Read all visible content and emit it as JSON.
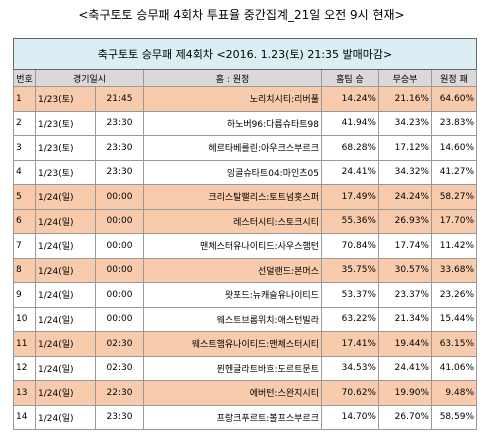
{
  "header": {
    "title": "<축구토토 승무패 4회차 투표율 중간집계_21일 오전 9시 현재>"
  },
  "table": {
    "title": "축구토토 승무패 제4회차 <2016. 1.23(토) 21:35 발매마감>",
    "columns": [
      "번호",
      "경기일시",
      "홈 : 원정",
      "홈팀 승",
      "무승부",
      "원정 패"
    ],
    "rows": [
      {
        "cells": [
          "1",
          "1/23(토)",
          "21:45",
          "노리치시티:리버풀",
          "14.24%",
          "21.16%",
          "64.60%"
        ],
        "highlight": true
      },
      {
        "cells": [
          "2",
          "1/23(토)",
          "23:30",
          "하노버96:다름슈타트98",
          "41.94%",
          "34.23%",
          "23.83%"
        ],
        "highlight": false
      },
      {
        "cells": [
          "3",
          "1/23(토)",
          "23:30",
          "헤르타베를린:아우크스부르크",
          "68.28%",
          "17.12%",
          "14.60%"
        ],
        "highlight": false
      },
      {
        "cells": [
          "4",
          "1/23(토)",
          "23:30",
          "잉골슈타트04:마인츠05",
          "24.41%",
          "34.32%",
          "41.27%"
        ],
        "highlight": false
      },
      {
        "cells": [
          "5",
          "1/24(일)",
          "00:00",
          "크리스탈팰리스:토트넘홋스퍼",
          "17.49%",
          "24.24%",
          "58.27%"
        ],
        "highlight": true
      },
      {
        "cells": [
          "6",
          "1/24(일)",
          "00:00",
          "레스터시티:스토크시티",
          "55.36%",
          "26.93%",
          "17.70%"
        ],
        "highlight": true
      },
      {
        "cells": [
          "7",
          "1/24(일)",
          "00:00",
          "맨체스터유나이티드:사우스햄턴",
          "70.84%",
          "17.74%",
          "11.42%"
        ],
        "highlight": false
      },
      {
        "cells": [
          "8",
          "1/24(일)",
          "00:00",
          "선덜랜드:본머스",
          "35.75%",
          "30.57%",
          "33.68%"
        ],
        "highlight": true
      },
      {
        "cells": [
          "9",
          "1/24(일)",
          "00:00",
          "왓포드:뉴캐슬유나이티드",
          "53.37%",
          "23.37%",
          "23.26%"
        ],
        "highlight": false
      },
      {
        "cells": [
          "10",
          "1/24(일)",
          "00:00",
          "웨스트브롬위치:애스턴빌라",
          "63.22%",
          "21.34%",
          "15.44%"
        ],
        "highlight": false
      },
      {
        "cells": [
          "11",
          "1/24(일)",
          "02:30",
          "웨스트햄유나이티드:맨체스터시티",
          "17.41%",
          "19.44%",
          "63.15%"
        ],
        "highlight": true
      },
      {
        "cells": [
          "12",
          "1/24(일)",
          "02:30",
          "뮌헨글라트바흐:도르트문트",
          "34.53%",
          "24.41%",
          "41.06%"
        ],
        "highlight": false
      },
      {
        "cells": [
          "13",
          "1/24(일)",
          "22:30",
          "에버턴:스완지시티",
          "70.62%",
          "19.90%",
          "9.48%"
        ],
        "highlight": true
      },
      {
        "cells": [
          "14",
          "1/24(일)",
          "23:30",
          "프랑크푸르트:볼프스부르크",
          "14.70%",
          "26.70%",
          "58.59%"
        ],
        "highlight": false
      }
    ]
  }
}
